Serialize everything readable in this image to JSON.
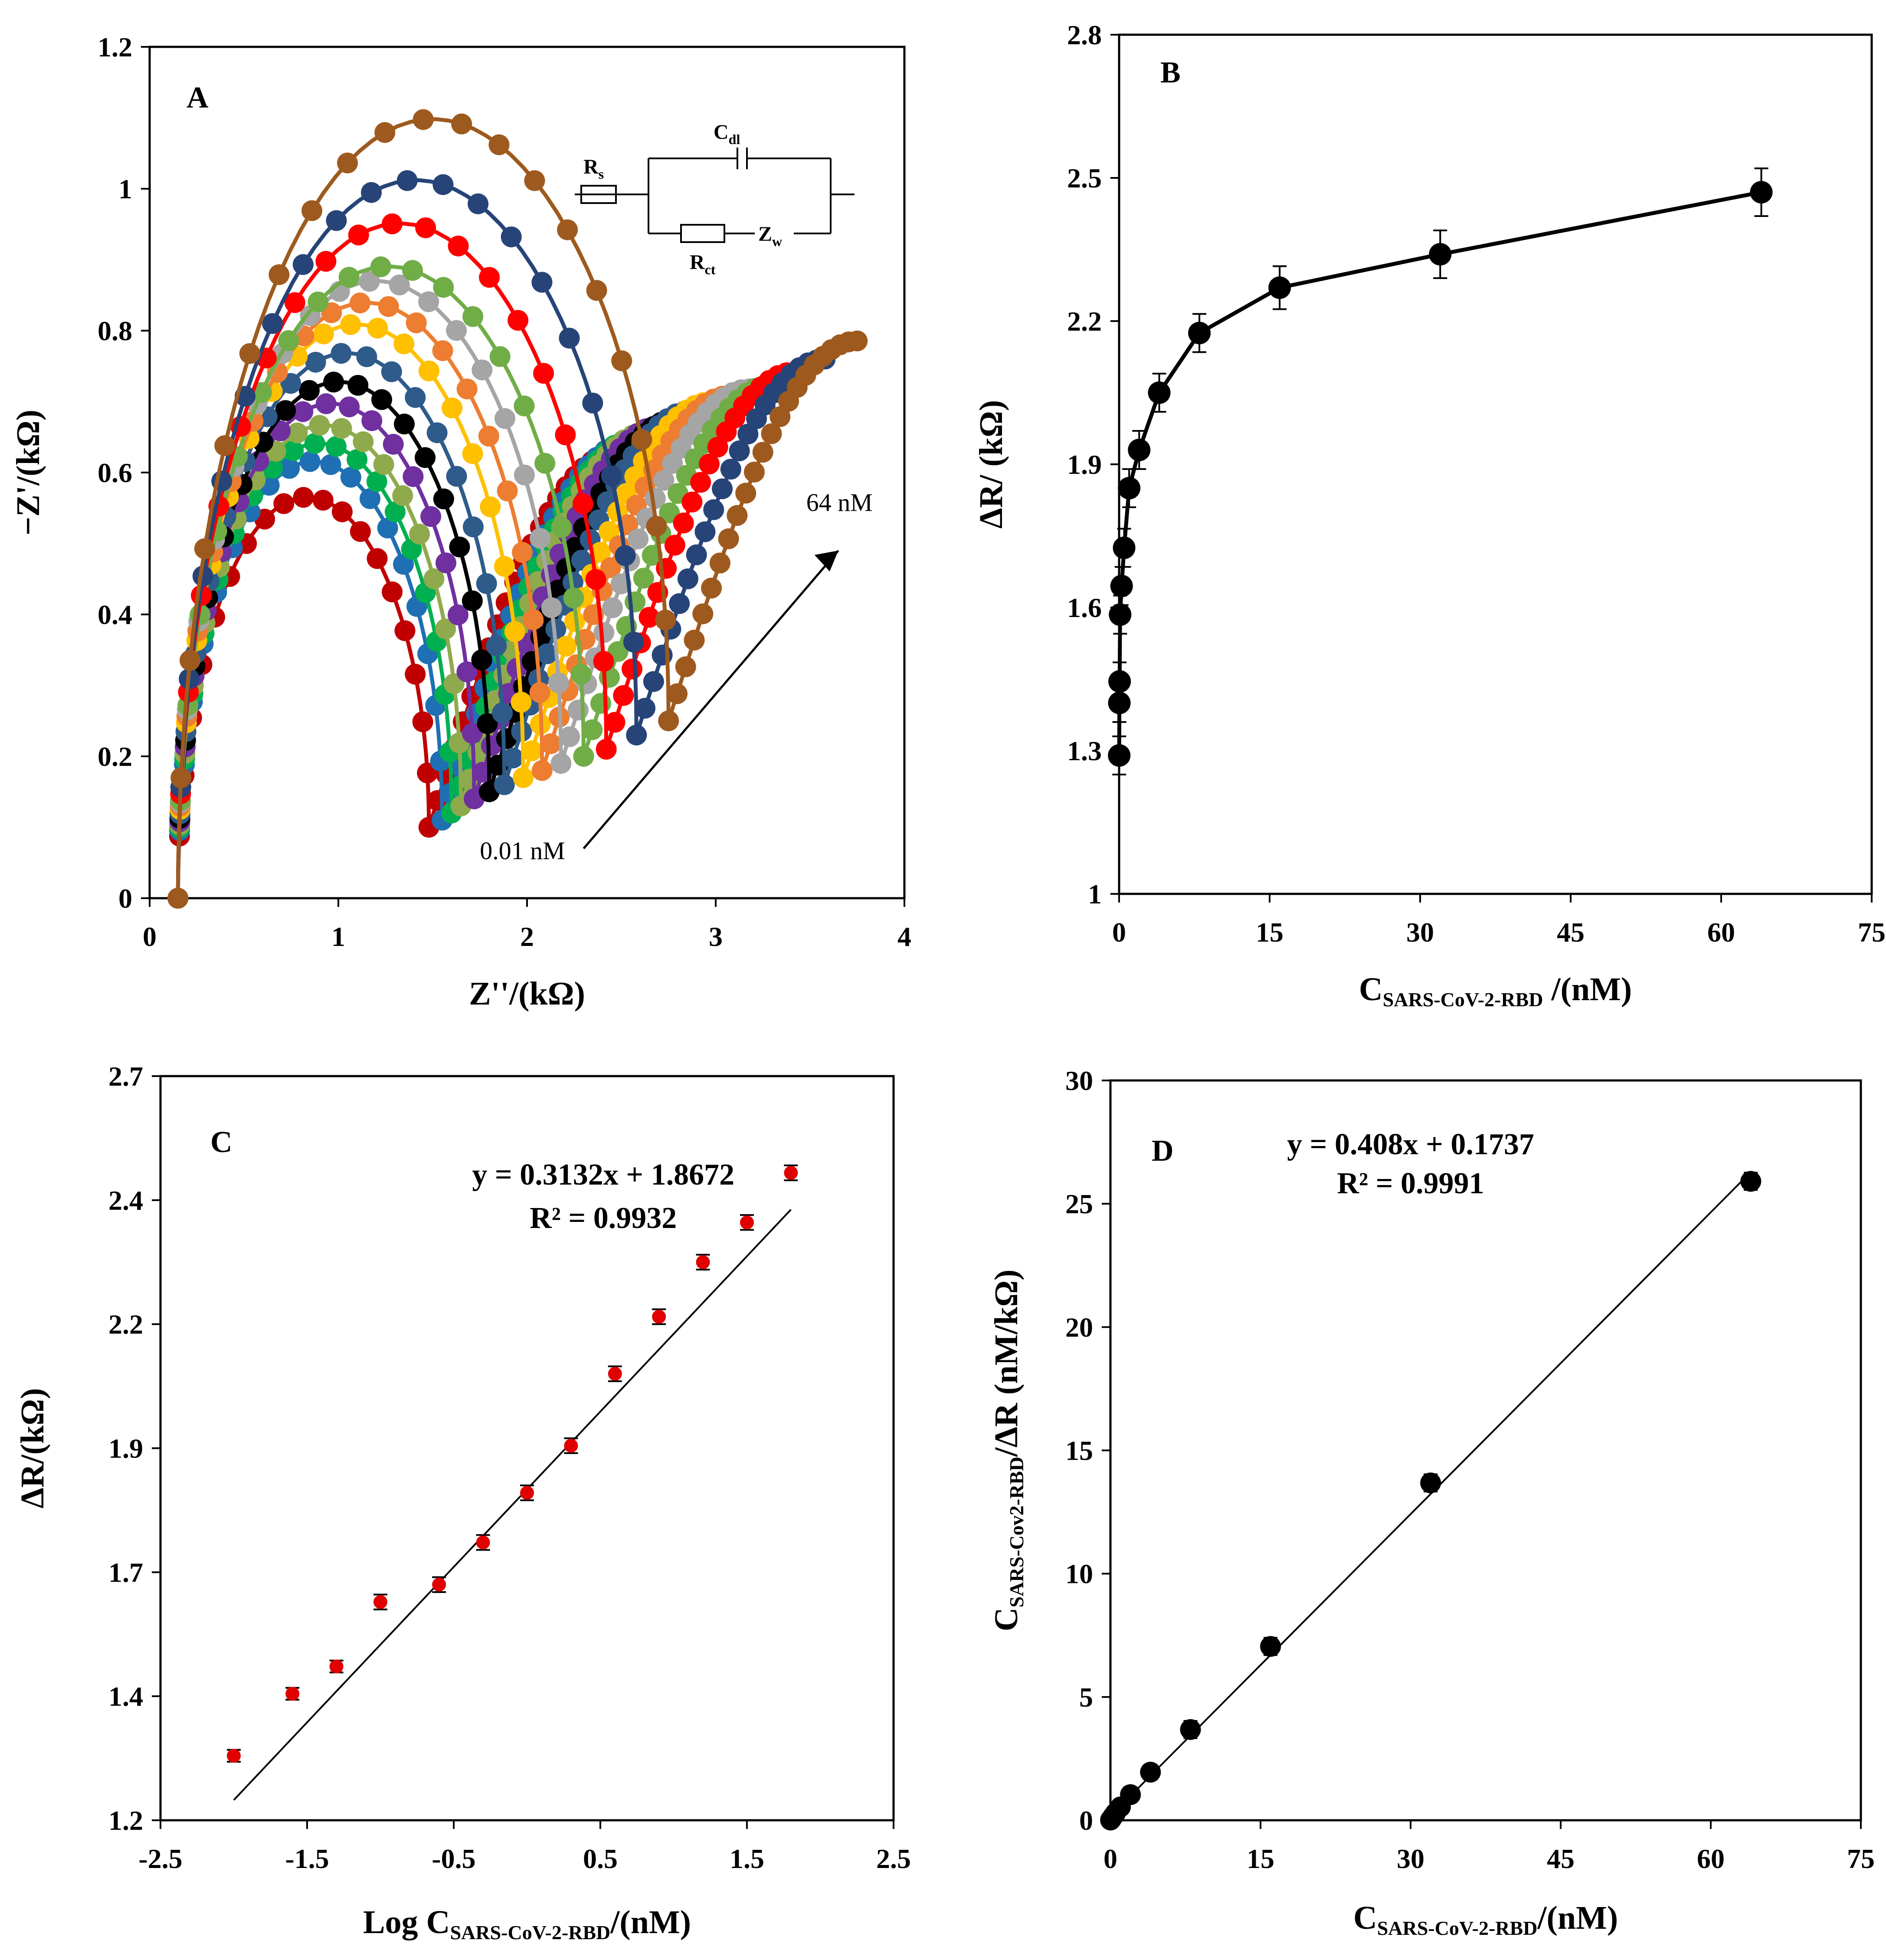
{
  "figure": {
    "panels": [
      {
        "id": "A",
        "letter": "A"
      },
      {
        "id": "B",
        "letter": "B"
      },
      {
        "id": "C",
        "letter": "C"
      },
      {
        "id": "D",
        "letter": "D"
      }
    ]
  },
  "chart_data": [
    {
      "panel": "A",
      "type": "scatter",
      "title": "",
      "xlabel": "Z''/(kΩ)",
      "ylabel": "−Z'/(kΩ)",
      "xlim": [
        0,
        4
      ],
      "ylim": [
        0,
        1.2
      ],
      "xticks": [
        "0",
        "1",
        "2",
        "3",
        "4"
      ],
      "yticks": [
        "0",
        "0.2",
        "0.4",
        "0.6",
        "0.8",
        "1",
        "1.2"
      ],
      "grid": false,
      "annotations": {
        "low": "0.01 nM",
        "high": "64 nM"
      },
      "circuit": {
        "rs": "R",
        "rs_sub": "s",
        "cdl": "C",
        "cdl_sub": "dl",
        "rct": "R",
        "rct_sub": "ct",
        "zw": "Z",
        "zw_sub": "w"
      },
      "series": [
        {
          "color": "#c00000",
          "peak_x": 0.82,
          "peak_y": 0.56,
          "min_x": 1.48,
          "min_y": 0.1
        },
        {
          "color": "#1f6fb4",
          "peak_x": 0.86,
          "peak_y": 0.61,
          "min_x": 1.55,
          "min_y": 0.11
        },
        {
          "color": "#00b050",
          "peak_x": 0.88,
          "peak_y": 0.635,
          "min_x": 1.6,
          "min_y": 0.12
        },
        {
          "color": "#8faa4c",
          "peak_x": 0.9,
          "peak_y": 0.66,
          "min_x": 1.65,
          "min_y": 0.13
        },
        {
          "color": "#7030a0",
          "peak_x": 0.92,
          "peak_y": 0.69,
          "min_x": 1.72,
          "min_y": 0.14
        },
        {
          "color": "#000000",
          "peak_x": 0.95,
          "peak_y": 0.72,
          "min_x": 1.8,
          "min_y": 0.15
        },
        {
          "color": "#2e5b8a",
          "peak_x": 1.0,
          "peak_y": 0.76,
          "min_x": 1.88,
          "min_y": 0.16
        },
        {
          "color": "#ffc000",
          "peak_x": 1.05,
          "peak_y": 0.8,
          "min_x": 1.98,
          "min_y": 0.17
        },
        {
          "color": "#ed7d31",
          "peak_x": 1.1,
          "peak_y": 0.83,
          "min_x": 2.08,
          "min_y": 0.18
        },
        {
          "color": "#a5a5a5",
          "peak_x": 1.15,
          "peak_y": 0.86,
          "min_x": 2.18,
          "min_y": 0.19
        },
        {
          "color": "#70ad47",
          "peak_x": 1.15,
          "peak_y": 0.88,
          "min_x": 2.3,
          "min_y": 0.2
        },
        {
          "color": "#ff0000",
          "peak_x": 1.2,
          "peak_y": 0.94,
          "min_x": 2.42,
          "min_y": 0.21
        },
        {
          "color": "#264478",
          "peak_x": 1.25,
          "peak_y": 1.0,
          "min_x": 2.58,
          "min_y": 0.23
        },
        {
          "color": "#9e5a1e",
          "peak_x": 1.45,
          "peak_y": 1.085,
          "min_x": 2.75,
          "min_y": 0.25
        }
      ]
    },
    {
      "panel": "B",
      "type": "line",
      "title": "",
      "xlabel": "C",
      "xlabel_sub": "SARS-CoV-2-RBD",
      "xlabel_tail": " /(nM)",
      "ylabel": "ΔR/ (kΩ)",
      "xlim": [
        0,
        75
      ],
      "ylim": [
        1,
        2.8
      ],
      "xticks": [
        "0",
        "15",
        "30",
        "45",
        "60",
        "75"
      ],
      "yticks": [
        "1",
        "1.3",
        "1.6",
        "1.9",
        "2.2",
        "2.5",
        "2.8"
      ],
      "grid": false,
      "x": [
        0.01,
        0.025,
        0.05,
        0.1,
        0.25,
        0.5,
        1,
        2,
        4,
        8,
        16,
        32,
        64
      ],
      "y": [
        1.29,
        1.4,
        1.445,
        1.585,
        1.645,
        1.725,
        1.85,
        1.93,
        2.05,
        2.175,
        2.27,
        2.34,
        2.47
      ],
      "err": [
        0.04,
        0.04,
        0.04,
        0.04,
        0.04,
        0.04,
        0.04,
        0.04,
        0.04,
        0.04,
        0.045,
        0.05,
        0.05
      ]
    },
    {
      "panel": "C",
      "type": "scatter",
      "title": "",
      "xlabel": "Log C",
      "xlabel_sub": "SARS-CoV-2-RBD",
      "xlabel_tail": "/(nM)",
      "ylabel": "ΔR/(kΩ)",
      "xlim": [
        -2.5,
        2.5
      ],
      "ylim": [
        1.2,
        2.7
      ],
      "xticks": [
        "-2.5",
        "-1.5",
        "-0.5",
        "0.5",
        "1.5",
        "2.5"
      ],
      "yticks": [
        "1.2",
        "1.4",
        "1.7",
        "1.9",
        "2.2",
        "2.4",
        "2.7"
      ],
      "grid": false,
      "equation": "y = 0.3132x + 1.8672",
      "r2": "R² = 0.9932",
      "fit": {
        "slope": 0.3132,
        "intercept": 1.8672,
        "x_range": [
          -2.0,
          1.8
        ]
      },
      "x": [
        -2.0,
        -1.6,
        -1.3,
        -1.0,
        -0.6,
        -0.3,
        0.0,
        0.3,
        0.6,
        0.9,
        1.2,
        1.5,
        1.8
      ],
      "y": [
        1.33,
        1.455,
        1.51,
        1.64,
        1.675,
        1.76,
        1.86,
        1.955,
        2.1,
        2.215,
        2.325,
        2.405,
        2.505
      ],
      "err": [
        0.012,
        0.012,
        0.012,
        0.015,
        0.015,
        0.015,
        0.015,
        0.015,
        0.015,
        0.015,
        0.015,
        0.015,
        0.015
      ]
    },
    {
      "panel": "D",
      "type": "scatter",
      "title": "",
      "xlabel": "C",
      "xlabel_sub": "SARS-CoV-2-RBD",
      "xlabel_tail": "/(nM)",
      "ylabel": "C",
      "ylabel_sub": "SARS-Cov2-RBD",
      "ylabel_tail": "/ΔR (nM/kΩ)",
      "xlim": [
        0,
        75
      ],
      "ylim": [
        0,
        30
      ],
      "xticks": [
        "0",
        "15",
        "30",
        "45",
        "60",
        "75"
      ],
      "yticks": [
        "0",
        "5",
        "10",
        "15",
        "20",
        "25",
        "30"
      ],
      "grid": false,
      "equation": "y = 0.408x + 0.1737",
      "r2": "R² = 0.9991",
      "fit": {
        "slope": 0.408,
        "intercept": 0.1737,
        "x_range": [
          0,
          64
        ]
      },
      "x": [
        0.01,
        0.025,
        0.05,
        0.1,
        0.25,
        0.5,
        1,
        2,
        4,
        8,
        16,
        32,
        64
      ],
      "y": [
        0.01,
        0.02,
        0.03,
        0.06,
        0.15,
        0.29,
        0.54,
        1.04,
        1.95,
        3.68,
        7.05,
        13.68,
        25.91
      ],
      "err": [
        0.05,
        0.05,
        0.05,
        0.05,
        0.05,
        0.1,
        0.2,
        0.3,
        0.3,
        0.35,
        0.35,
        0.35,
        0.35
      ]
    }
  ]
}
